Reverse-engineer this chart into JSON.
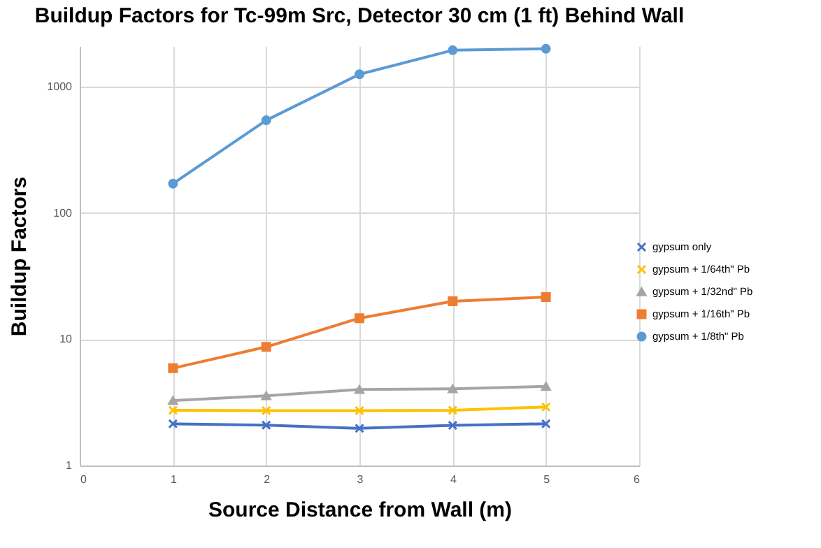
{
  "chart_data": {
    "type": "line",
    "title": "Buildup Factors for Tc-99m Src, Detector 30 cm (1 ft) Behind Wall",
    "xlabel": "Source Distance from Wall (m)",
    "ylabel": "Buildup Factors",
    "x": [
      1,
      2,
      3,
      4,
      5
    ],
    "xlim": [
      0,
      6
    ],
    "xticks": [
      0,
      1,
      2,
      3,
      4,
      5,
      6
    ],
    "ylim": [
      1,
      2100
    ],
    "yticks": [
      1,
      10,
      100,
      1000
    ],
    "log": "y",
    "grid": true,
    "legend": "right",
    "series": [
      {
        "name": "gypsum only",
        "color": "#4472c4",
        "marker": "cross",
        "values": [
          2.14,
          2.09,
          1.97,
          2.08,
          2.14
        ]
      },
      {
        "name": "gypsum + 1/64th\" Pb",
        "color": "#ffc000",
        "marker": "cross",
        "values": [
          2.74,
          2.72,
          2.72,
          2.74,
          2.91
        ]
      },
      {
        "name": "gypsum + 1/32nd\" Pb",
        "color": "#a5a5a5",
        "marker": "triangle",
        "values": [
          3.27,
          3.57,
          4.0,
          4.05,
          4.24
        ]
      },
      {
        "name": "gypsum + 1/16th\" Pb",
        "color": "#ed7d31",
        "marker": "square",
        "values": [
          5.9,
          8.7,
          14.7,
          20,
          21.6
        ]
      },
      {
        "name": "gypsum + 1/8th\" Pb",
        "color": "#5b9bd5",
        "marker": "circle",
        "values": [
          171,
          543,
          1257,
          1950,
          2000
        ]
      }
    ]
  }
}
